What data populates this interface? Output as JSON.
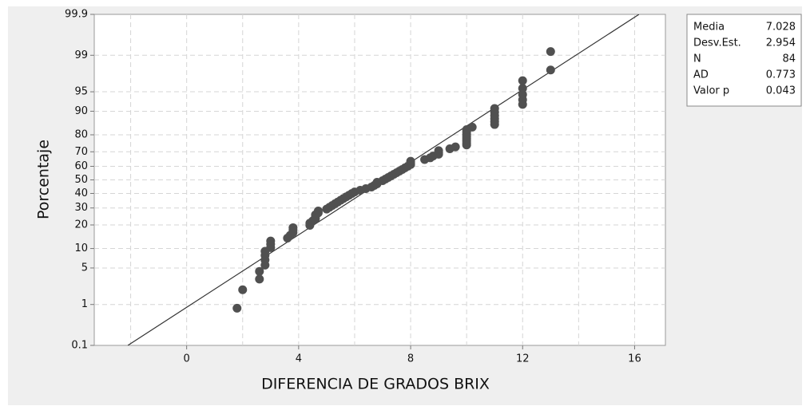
{
  "chart_data": {
    "type": "scatter",
    "yscale": "probability",
    "xlabel": "DIFERENCIA DE GRADOS BRIX",
    "ylabel": "Porcentaje",
    "color": "#505050",
    "line_color": "#333333",
    "grid": true,
    "xlim": [
      -3.3,
      17.1
    ],
    "xticks": [
      0,
      4,
      8,
      12,
      16
    ],
    "ylim": [
      0.1,
      99.9
    ],
    "yticks": [
      0.1,
      1,
      5,
      10,
      20,
      30,
      40,
      50,
      60,
      70,
      80,
      90,
      95,
      99,
      99.9
    ],
    "x": [
      1.8,
      2.0,
      2.6,
      2.6,
      2.8,
      2.8,
      2.8,
      2.8,
      3.0,
      3.0,
      3.0,
      3.6,
      3.7,
      3.8,
      3.8,
      3.8,
      4.4,
      4.4,
      4.5,
      4.6,
      4.6,
      4.6,
      4.7,
      4.7,
      5.0,
      5.1,
      5.2,
      5.3,
      5.4,
      5.5,
      5.6,
      5.7,
      5.8,
      5.9,
      6.0,
      6.2,
      6.4,
      6.6,
      6.7,
      6.8,
      6.8,
      7.0,
      7.1,
      7.2,
      7.3,
      7.4,
      7.5,
      7.6,
      7.7,
      7.8,
      7.9,
      8.0,
      8.0,
      8.0,
      8.5,
      8.7,
      8.8,
      9.0,
      9.0,
      9.0,
      9.4,
      9.6,
      10,
      10,
      10,
      10,
      10,
      10,
      10,
      10,
      10.2,
      11,
      11,
      11,
      11,
      11,
      11,
      12,
      12,
      12,
      12,
      12,
      13,
      13
    ],
    "values": [
      0.83,
      2.01,
      3.2,
      4.38,
      5.57,
      6.75,
      7.94,
      9.12,
      10.31,
      11.49,
      12.68,
      13.86,
      15.05,
      16.23,
      17.42,
      18.6,
      19.79,
      20.97,
      22.16,
      23.34,
      24.53,
      25.71,
      26.9,
      28.08,
      29.27,
      30.45,
      31.64,
      32.82,
      34.0,
      35.19,
      36.37,
      37.56,
      38.74,
      39.93,
      41.11,
      42.3,
      43.48,
      44.67,
      45.85,
      47.04,
      48.22,
      49.41,
      50.59,
      51.78,
      52.96,
      54.15,
      55.33,
      56.52,
      57.7,
      58.89,
      60.07,
      61.26,
      62.44,
      63.63,
      64.81,
      66.0,
      67.18,
      68.36,
      69.55,
      70.73,
      71.92,
      73.1,
      74.29,
      75.47,
      76.66,
      77.84,
      79.03,
      80.21,
      81.4,
      82.58,
      83.77,
      84.95,
      86.14,
      87.32,
      88.51,
      89.69,
      90.88,
      92.06,
      93.25,
      94.43,
      95.62,
      96.8,
      97.99,
      99.17
    ],
    "stats": [
      {
        "label": "Media",
        "value": 7.028
      },
      {
        "label": "Desv.Est.",
        "value": 2.954
      },
      {
        "label": "N",
        "value": 84
      },
      {
        "label": "AD",
        "value": 0.773
      },
      {
        "label": "Valor p",
        "value": 0.043
      }
    ]
  }
}
